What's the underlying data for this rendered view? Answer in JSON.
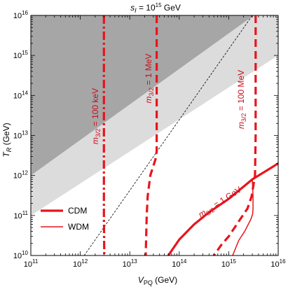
{
  "chart_data": {
    "type": "line",
    "title_base": "s",
    "title_sub": "I",
    "title_eq": " = 10",
    "title_exp": "15",
    "title_unit": " GeV",
    "xlabel_base": "V",
    "xlabel_sub": "PQ",
    "xlabel_unit": " (GeV)",
    "ylabel_base": "T",
    "ylabel_sub": "R",
    "ylabel_unit": " (GeV)",
    "x_scale": "log",
    "y_scale": "log",
    "xlim": [
      100000000000.0,
      1e+16
    ],
    "ylim": [
      10000000000.0,
      1e+16
    ],
    "x_ticks": [
      {
        "value": 100000000000.0,
        "base": "10",
        "exp": "11"
      },
      {
        "value": 1000000000000.0,
        "base": "10",
        "exp": "12"
      },
      {
        "value": 10000000000000.0,
        "base": "10",
        "exp": "13"
      },
      {
        "value": 100000000000000.0,
        "base": "10",
        "exp": "14"
      },
      {
        "value": 1000000000000000.0,
        "base": "10",
        "exp": "15"
      },
      {
        "value": 1e+16,
        "base": "10",
        "exp": "16"
      }
    ],
    "y_ticks": [
      {
        "value": 10000000000.0,
        "base": "10",
        "exp": "10"
      },
      {
        "value": 100000000000.0,
        "base": "10",
        "exp": "11"
      },
      {
        "value": 1000000000000.0,
        "base": "10",
        "exp": "12"
      },
      {
        "value": 10000000000000.0,
        "base": "10",
        "exp": "13"
      },
      {
        "value": 100000000000000.0,
        "base": "10",
        "exp": "14"
      },
      {
        "value": 1000000000000000.0,
        "base": "10",
        "exp": "15"
      },
      {
        "value": 1e+16,
        "base": "10",
        "exp": "16"
      }
    ],
    "regions": [
      {
        "fill": "#dcdcdc",
        "points": [
          [
            100000000000.0,
            100000000000.0
          ],
          [
            1e+16,
            1000000000000000.0
          ],
          [
            1e+16,
            1e+16
          ],
          [
            100000000000.0,
            1e+16
          ]
        ]
      },
      {
        "fill": "#a6a6a6",
        "points": [
          [
            100000000000.0,
            1000000000000.0
          ],
          [
            3200000000000000.0,
            1e+16
          ],
          [
            100000000000.0,
            1e+16
          ]
        ]
      }
    ],
    "reference_line": {
      "color": "#000000",
      "dash": "dashed",
      "points": [
        [
          1200000000000.0,
          10000000000.0
        ],
        [
          3000000000000000.0,
          1e+16
        ]
      ]
    },
    "series": [
      {
        "color": "#e8141c",
        "style": "dashdot",
        "width": "thick",
        "points": [
          [
            3000000000000.0,
            1e+16
          ],
          [
            3000000000000.0,
            100000000000.0
          ],
          [
            3050000000000.0,
            10000000000.0
          ]
        ]
      },
      {
        "color": "#e8141c",
        "style": "dashed",
        "width": "thick",
        "points": [
          [
            35000000000000.0,
            1e+16
          ],
          [
            35000000000000.0,
            4000000000000.0
          ],
          [
            33000000000000.0,
            2500000000000.0
          ],
          [
            26000000000000.0,
            1000000000000.0
          ],
          [
            23000000000000.0,
            300000000000.0
          ],
          [
            22000000000000.0,
            100000000000.0
          ],
          [
            21000000000000.0,
            10000000000.0
          ]
        ]
      },
      {
        "color": "#e8141c",
        "style": "dashed",
        "width": "thick",
        "points": [
          [
            3500000000000000.0,
            1e+16
          ],
          [
            3500000000000000.0,
            1000000000000000.0
          ],
          [
            3500000000000000.0,
            100000000000000.0
          ],
          [
            3500000000000000.0,
            10000000000000.0
          ],
          [
            3400000000000000.0,
            1000000000000.0
          ],
          [
            2900000000000000.0,
            300000000000.0
          ],
          [
            2400000000000000.0,
            150000000000.0
          ],
          [
            1700000000000000.0,
            80000000000.0
          ],
          [
            1000000000000000.0,
            30000000000.0
          ],
          [
            700000000000000.0,
            18000000000.0
          ],
          [
            500000000000000.0,
            10000000000.0
          ]
        ]
      },
      {
        "color": "#e8141c",
        "style": "solid",
        "width": "thick",
        "points": [
          [
            60000000000000.0,
            10000000000.0
          ],
          [
            100000000000000.0,
            25000000000.0
          ],
          [
            200000000000000.0,
            60000000000.0
          ],
          [
            400000000000000.0,
            120000000000.0
          ],
          [
            1000000000000000.0,
            260000000000.0
          ],
          [
            3000000000000000.0,
            800000000000.0
          ],
          [
            1e+16,
            2000000000000.0
          ]
        ]
      },
      {
        "color": "#e8141c",
        "style": "solid",
        "width": "thin",
        "points": [
          [
            3000000000000000.0,
            800000000000.0
          ],
          [
            3100000000000000.0,
            300000000000.0
          ],
          [
            3100000000000000.0,
            150000000000.0
          ],
          [
            3050000000000000.0,
            110000000000.0
          ],
          [
            2800000000000000.0,
            80000000000.0
          ],
          [
            2100000000000000.0,
            40000000000.0
          ],
          [
            1600000000000000.0,
            24000000000.0
          ],
          [
            1200000000000000.0,
            10000000000.0
          ]
        ]
      }
    ],
    "curve_labels": [
      {
        "base": "m",
        "sub": "3/2",
        "value": " = 100 keV",
        "color": "#c8101c"
      },
      {
        "base": "m",
        "sub": "3/2",
        "value": " = 1 MeV",
        "color": "#c8101c"
      },
      {
        "base": "m",
        "sub": "3/2",
        "value": " = 100 MeV",
        "color": "#c8101c"
      },
      {
        "base": "m",
        "sub": "3/2",
        "value": " = 1 GeV",
        "color": "#c8101c"
      }
    ],
    "legend": {
      "placement": "bottom-left",
      "entries": [
        {
          "label": "CDM",
          "color": "#e8141c",
          "style": "thick"
        },
        {
          "label": "WDM",
          "color": "#e8141c",
          "style": "thin"
        }
      ]
    }
  }
}
